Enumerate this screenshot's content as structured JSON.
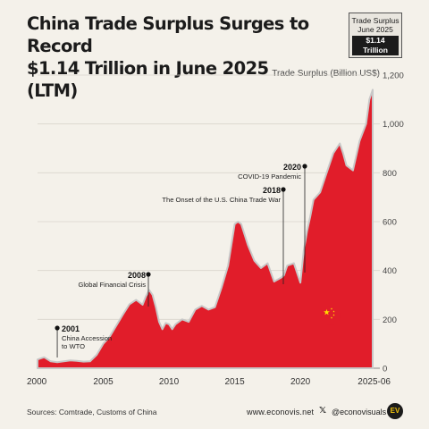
{
  "header": {
    "title_line1": "China Trade Surplus Surges to Record",
    "title_line2": "$1.14 Trillion in June 2025 (LTM)"
  },
  "badge": {
    "line1": "Trade Surplus",
    "line2": "June 2025",
    "value": "$1.14 Trillion"
  },
  "footer": {
    "sources": "Sources: Comtrade, Customs of China",
    "website": "www.econovis.net",
    "x_icon": "x-logo-icon",
    "handle": "@econovisuals",
    "logo_text": "EV"
  },
  "colors": {
    "background": "#f4f1ea",
    "area_fill": "#e11d2a",
    "flag_red": "#e11d2a",
    "flag_star": "#ffde00"
  },
  "chart_data": {
    "type": "area",
    "ylabel": "Trade Surplus (Billion US$)",
    "ylim": [
      0,
      1200
    ],
    "yticks": [
      0,
      200,
      400,
      600,
      800,
      1000,
      1200
    ],
    "ytick_labels": [
      "0",
      "200",
      "400",
      "600",
      "800",
      "1,000",
      "1,200"
    ],
    "xlim": [
      2000,
      2025.5
    ],
    "xticks": [
      2000,
      2005,
      2010,
      2015,
      2020,
      2025.5
    ],
    "xtick_labels": [
      "2000",
      "2005",
      "2010",
      "2015",
      "2020",
      "2025-06"
    ],
    "grid": "horizontal",
    "series": [
      {
        "x": [
          2000,
          2000.5,
          2001,
          2001.5,
          2002,
          2002.5,
          2003,
          2003.5,
          2004,
          2004.5,
          2005,
          2005.5,
          2006,
          2006.5,
          2007,
          2007.5,
          2008,
          2008.25,
          2008.5,
          2008.75,
          2009,
          2009.25,
          2009.5,
          2009.75,
          2010,
          2010.25,
          2010.5,
          2011,
          2011.5,
          2012,
          2012.5,
          2013,
          2013.5,
          2014,
          2014.5,
          2015,
          2015.25,
          2015.5,
          2016,
          2016.5,
          2017,
          2017.5,
          2018,
          2018.5,
          2018.75,
          2019,
          2019.5,
          2020,
          2020.25,
          2020.5,
          2020.75,
          2021,
          2021.5,
          2022,
          2022.5,
          2023,
          2023.25,
          2023.5,
          2024,
          2024.5,
          2025,
          2025.25,
          2025.5
        ],
        "y": [
          36,
          45,
          28,
          25,
          28,
          32,
          30,
          27,
          28,
          55,
          100,
          130,
          175,
          220,
          262,
          280,
          260,
          295,
          320,
          300,
          250,
          190,
          160,
          185,
          180,
          160,
          180,
          200,
          190,
          240,
          255,
          240,
          250,
          330,
          420,
          590,
          600,
          590,
          505,
          440,
          410,
          430,
          355,
          370,
          380,
          420,
          430,
          350,
          480,
          560,
          620,
          690,
          720,
          800,
          880,
          920,
          880,
          830,
          810,
          930,
          1000,
          1100,
          1140
        ]
      }
    ],
    "annotations": [
      {
        "year": "2001",
        "text_lines": [
          "China Accession",
          "to WTO"
        ],
        "x": 2001.5,
        "y": 160
      },
      {
        "year": "2008",
        "text_lines": [
          "Global Financial Crisis"
        ],
        "x": 2008.5,
        "y": 380
      },
      {
        "year": "2018",
        "text_lines": [
          "The Onset of the U.S. China Trade War"
        ],
        "x": 2018.5,
        "y": 720
      },
      {
        "year": "2020",
        "text_lines": [
          "COVID-19 Pandemic"
        ],
        "x": 2020.0,
        "y": 820
      }
    ]
  }
}
